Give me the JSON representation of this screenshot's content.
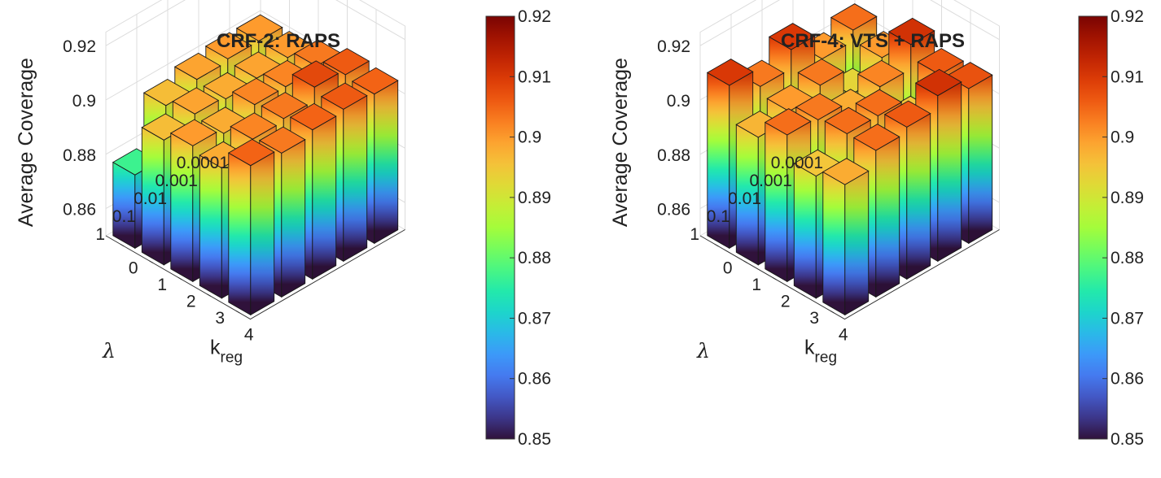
{
  "colors": {
    "turbo": [
      "#30123b",
      "#4145ab",
      "#4675ed",
      "#39a2fc",
      "#1bcfd4",
      "#24eca6",
      "#61fc6c",
      "#a4fc3b",
      "#d1e834",
      "#f3c63a",
      "#fe9b2d",
      "#f36315",
      "#d93806",
      "#b11901",
      "#7a0402"
    ],
    "edge": "#1a1a1a",
    "grid": "#dcdcdc"
  },
  "chart_data": [
    {
      "type": "bar3d",
      "title": "CRF-2: RAPS",
      "zlabel": "Average Coverage",
      "xlabel": "k",
      "xlabel_sub": "reg",
      "ylabel": "λ",
      "x_ticks": [
        "0",
        "1",
        "2",
        "3",
        "4"
      ],
      "y_ticks": [
        "0.0001",
        "0.001",
        "0.01",
        "0.1",
        "1"
      ],
      "z_ticks": [
        "0.86",
        "0.88",
        "0.9",
        "0.92"
      ],
      "zlim": [
        0.85,
        0.92
      ],
      "colorbar": {
        "range": [
          0.85,
          0.92
        ],
        "ticks": [
          "0.85",
          "0.86",
          "0.87",
          "0.88",
          "0.89",
          "0.9",
          "0.91",
          "0.92"
        ]
      },
      "values": [
        [
          0.9,
          0.9,
          0.903,
          0.906,
          0.905
        ],
        [
          0.9,
          0.899,
          0.902,
          0.908,
          0.906
        ],
        [
          0.899,
          0.898,
          0.902,
          0.903,
          0.905
        ],
        [
          0.896,
          0.899,
          0.898,
          0.902,
          0.903
        ],
        [
          0.877,
          0.896,
          0.9,
          0.898,
          0.905
        ]
      ]
    },
    {
      "type": "bar3d",
      "title": "CRF-4: VTS + RAPS",
      "zlabel": "Average Coverage",
      "xlabel": "k",
      "xlabel_sub": "reg",
      "ylabel": "λ",
      "x_ticks": [
        "0",
        "1",
        "2",
        "3",
        "4"
      ],
      "y_ticks": [
        "0.0001",
        "0.001",
        "0.01",
        "0.1",
        "1"
      ],
      "z_ticks": [
        "0.86",
        "0.88",
        "0.9",
        "0.92"
      ],
      "zlim": [
        0.85,
        0.92
      ],
      "colorbar": {
        "range": [
          0.85,
          0.92
        ],
        "ticks": [
          "0.85",
          "0.86",
          "0.87",
          "0.88",
          "0.89",
          "0.9",
          "0.91",
          "0.92"
        ]
      },
      "values": [
        [
          0.904,
          0.9,
          0.911,
          0.906,
          0.907
        ],
        [
          0.9,
          0.893,
          0.902,
          0.895,
          0.911
        ],
        [
          0.91,
          0.903,
          0.898,
          0.904,
          0.906
        ],
        [
          0.903,
          0.9,
          0.903,
          0.904,
          0.904
        ],
        [
          0.91,
          0.897,
          0.904,
          0.895,
          0.898
        ]
      ]
    }
  ]
}
